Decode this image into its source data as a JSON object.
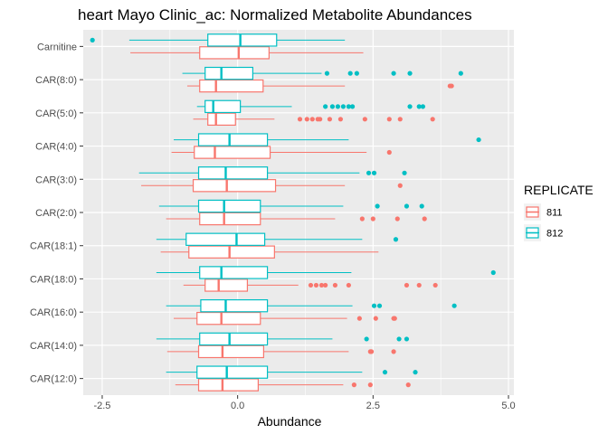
{
  "chart_data": {
    "type": "boxplot",
    "orientation": "horizontal",
    "title": "heart Mayo Clinic_ac: Normalized Metabolite Abundances",
    "xlabel": "Abundance",
    "ylabel": "",
    "xlim": [
      -2.85,
      5.1
    ],
    "x_ticks": [
      {
        "value": -2.5,
        "label": "-2.5"
      },
      {
        "value": 0,
        "label": "0.0"
      },
      {
        "value": 2.5,
        "label": "2.5"
      },
      {
        "value": 5,
        "label": "5.0"
      }
    ],
    "categories": [
      "Carnitine",
      "CAR(8:0)",
      "CAR(5:0)",
      "CAR(4:0)",
      "CAR(3:0)",
      "CAR(2:0)",
      "CAR(18:1)",
      "CAR(18:0)",
      "CAR(16:0)",
      "CAR(14:0)",
      "CAR(12:0)"
    ],
    "legend": {
      "title": "REPLICATE",
      "placement": "right"
    },
    "series": [
      {
        "name": "811",
        "color": "#F8766D",
        "boxes": [
          {
            "category": "Carnitine",
            "whisker_low": -1.98,
            "q1": -0.7,
            "median": 0.02,
            "q3": 0.58,
            "whisker_high": 2.32,
            "outliers": []
          },
          {
            "category": "CAR(8:0)",
            "whisker_low": -0.93,
            "q1": -0.7,
            "median": -0.4,
            "q3": 0.47,
            "whisker_high": 1.98,
            "outliers": [
              3.92,
              3.95
            ]
          },
          {
            "category": "CAR(5:0)",
            "whisker_low": -0.82,
            "q1": -0.55,
            "median": -0.4,
            "q3": -0.04,
            "whisker_high": 0.68,
            "outliers": [
              1.15,
              1.28,
              1.38,
              1.48,
              1.52,
              1.7,
              1.9,
              2.35,
              2.8,
              3.0,
              3.6
            ]
          },
          {
            "category": "CAR(4:0)",
            "whisker_low": -1.22,
            "q1": -0.8,
            "median": -0.42,
            "q3": 0.6,
            "whisker_high": 2.38,
            "outliers": [
              2.8
            ]
          },
          {
            "category": "CAR(3:0)",
            "whisker_low": -1.78,
            "q1": -0.82,
            "median": -0.2,
            "q3": 0.7,
            "whisker_high": 1.98,
            "outliers": [
              3.0
            ]
          },
          {
            "category": "CAR(2:0)",
            "whisker_low": -1.32,
            "q1": -0.7,
            "median": -0.25,
            "q3": 0.42,
            "whisker_high": 1.8,
            "outliers": [
              2.3,
              2.5,
              2.95,
              3.45
            ]
          },
          {
            "category": "CAR(18:1)",
            "whisker_low": -1.42,
            "q1": -0.9,
            "median": -0.15,
            "q3": 0.68,
            "whisker_high": 2.6,
            "outliers": []
          },
          {
            "category": "CAR(18:0)",
            "whisker_low": -1.0,
            "q1": -0.6,
            "median": -0.35,
            "q3": 0.18,
            "whisker_high": 1.12,
            "outliers": [
              1.35,
              1.45,
              1.55,
              1.62,
              1.8,
              2.05,
              3.12,
              3.35,
              3.65
            ]
          },
          {
            "category": "CAR(16:0)",
            "whisker_low": -1.18,
            "q1": -0.75,
            "median": -0.3,
            "q3": 0.42,
            "whisker_high": 2.02,
            "outliers": [
              2.25,
              2.55,
              2.88,
              2.9
            ]
          },
          {
            "category": "CAR(14:0)",
            "whisker_low": -1.3,
            "q1": -0.72,
            "median": -0.28,
            "q3": 0.48,
            "whisker_high": 2.05,
            "outliers": [
              2.45,
              2.47,
              2.88
            ]
          },
          {
            "category": "CAR(12:0)",
            "whisker_low": -1.15,
            "q1": -0.72,
            "median": -0.28,
            "q3": 0.38,
            "whisker_high": 1.95,
            "outliers": [
              2.15,
              2.45,
              3.15
            ]
          }
        ]
      },
      {
        "name": "812",
        "color": "#00BFC4",
        "boxes": [
          {
            "category": "Carnitine",
            "whisker_low": -2.0,
            "q1": -0.55,
            "median": 0.05,
            "q3": 0.72,
            "whisker_high": 1.98,
            "outliers": [
              -2.68
            ]
          },
          {
            "category": "CAR(8:0)",
            "whisker_low": -1.02,
            "q1": -0.6,
            "median": -0.3,
            "q3": 0.28,
            "whisker_high": 1.55,
            "outliers": [
              1.65,
              2.08,
              2.2,
              2.88,
              3.18,
              4.12
            ]
          },
          {
            "category": "CAR(5:0)",
            "whisker_low": -0.75,
            "q1": -0.6,
            "median": -0.45,
            "q3": 0.05,
            "whisker_high": 1.0,
            "outliers": [
              1.62,
              1.75,
              1.85,
              1.95,
              2.05,
              2.12,
              3.18,
              3.35,
              3.42
            ]
          },
          {
            "category": "CAR(4:0)",
            "whisker_low": -1.18,
            "q1": -0.72,
            "median": -0.15,
            "q3": 0.55,
            "whisker_high": 2.05,
            "outliers": [
              4.45
            ]
          },
          {
            "category": "CAR(3:0)",
            "whisker_low": -1.82,
            "q1": -0.72,
            "median": -0.22,
            "q3": 0.55,
            "whisker_high": 2.25,
            "outliers": [
              2.42,
              2.52,
              3.08
            ]
          },
          {
            "category": "CAR(2:0)",
            "whisker_low": -1.45,
            "q1": -0.72,
            "median": -0.25,
            "q3": 0.42,
            "whisker_high": 1.95,
            "outliers": [
              2.58,
              3.12,
              3.4
            ]
          },
          {
            "category": "CAR(18:1)",
            "whisker_low": -1.5,
            "q1": -0.95,
            "median": -0.02,
            "q3": 0.5,
            "whisker_high": 2.3,
            "outliers": [
              2.92
            ]
          },
          {
            "category": "CAR(18:0)",
            "whisker_low": -1.5,
            "q1": -0.7,
            "median": -0.3,
            "q3": 0.55,
            "whisker_high": 2.1,
            "outliers": [
              4.72
            ]
          },
          {
            "category": "CAR(16:0)",
            "whisker_low": -1.32,
            "q1": -0.68,
            "median": -0.22,
            "q3": 0.55,
            "whisker_high": 2.12,
            "outliers": [
              2.52,
              2.62,
              4.0
            ]
          },
          {
            "category": "CAR(14:0)",
            "whisker_low": -1.5,
            "q1": -0.7,
            "median": -0.15,
            "q3": 0.55,
            "whisker_high": 1.75,
            "outliers": [
              2.38,
              2.98,
              3.12
            ]
          },
          {
            "category": "CAR(12:0)",
            "whisker_low": -1.32,
            "q1": -0.75,
            "median": -0.2,
            "q3": 0.55,
            "whisker_high": 2.3,
            "outliers": [
              2.72,
              3.28
            ]
          }
        ]
      }
    ],
    "grid": true,
    "background": "#EBEBEB"
  }
}
